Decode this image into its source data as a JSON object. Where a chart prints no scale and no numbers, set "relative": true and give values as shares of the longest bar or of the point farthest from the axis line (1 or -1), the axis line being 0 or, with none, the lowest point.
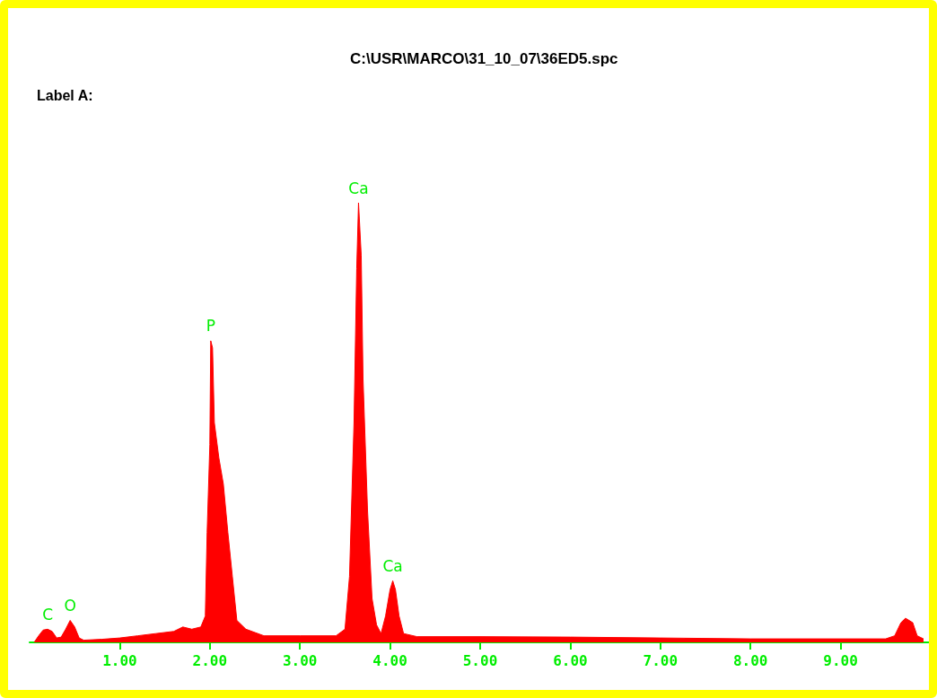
{
  "chart_data": {
    "type": "area",
    "title": "C:\\USR\\MARCO\\31_10_07\\36ED5.spc",
    "subtitle": "Label A:",
    "relative": true,
    "marker": "none",
    "color": "#ff0000",
    "x": [
      0.05,
      0.1,
      0.15,
      0.2,
      0.25,
      0.3,
      0.35,
      0.4,
      0.45,
      0.5,
      0.55,
      0.6,
      0.8,
      1.0,
      1.2,
      1.4,
      1.6,
      1.7,
      1.8,
      1.9,
      1.95,
      1.97,
      2.0,
      2.01,
      2.03,
      2.05,
      2.1,
      2.15,
      2.2,
      2.25,
      2.3,
      2.4,
      2.6,
      3.0,
      3.4,
      3.5,
      3.55,
      3.6,
      3.63,
      3.65,
      3.68,
      3.7,
      3.75,
      3.8,
      3.85,
      3.9,
      3.95,
      4.0,
      4.03,
      4.06,
      4.1,
      4.15,
      4.3,
      5.0,
      6.0,
      7.0,
      8.0,
      9.5,
      9.6,
      9.67,
      9.72,
      9.8,
      9.85,
      9.92
    ],
    "values": [
      0.0,
      0.015,
      0.028,
      0.03,
      0.025,
      0.01,
      0.012,
      0.03,
      0.05,
      0.035,
      0.01,
      0.005,
      0.007,
      0.01,
      0.015,
      0.02,
      0.025,
      0.035,
      0.03,
      0.035,
      0.06,
      0.25,
      0.45,
      0.686,
      0.67,
      0.5,
      0.42,
      0.36,
      0.25,
      0.15,
      0.05,
      0.03,
      0.015,
      0.015,
      0.015,
      0.03,
      0.15,
      0.5,
      0.85,
      1.0,
      0.88,
      0.6,
      0.3,
      0.1,
      0.04,
      0.02,
      0.06,
      0.12,
      0.14,
      0.12,
      0.06,
      0.02,
      0.013,
      0.013,
      0.012,
      0.01,
      0.008,
      0.008,
      0.015,
      0.045,
      0.055,
      0.045,
      0.015,
      0.008
    ],
    "xlim": [
      0,
      10
    ],
    "xticks": [
      {
        "value": 1,
        "label": "1.00"
      },
      {
        "value": 2,
        "label": "2.00"
      },
      {
        "value": 3,
        "label": "3.00"
      },
      {
        "value": 4,
        "label": "4.00"
      },
      {
        "value": 5,
        "label": "5.00"
      },
      {
        "value": 6,
        "label": "6.00"
      },
      {
        "value": 7,
        "label": "7.00"
      },
      {
        "value": 8,
        "label": "8.00"
      },
      {
        "value": 9,
        "label": "9.00"
      }
    ],
    "annotations": [
      {
        "text": "C",
        "x": 0.2,
        "y": 0.03
      },
      {
        "text": "O",
        "x": 0.45,
        "y": 0.05
      },
      {
        "text": "P",
        "x": 2.01,
        "y": 0.686
      },
      {
        "text": "Ca",
        "x": 3.65,
        "y": 1.0
      },
      {
        "text": "Ca",
        "x": 4.03,
        "y": 0.14
      }
    ]
  }
}
